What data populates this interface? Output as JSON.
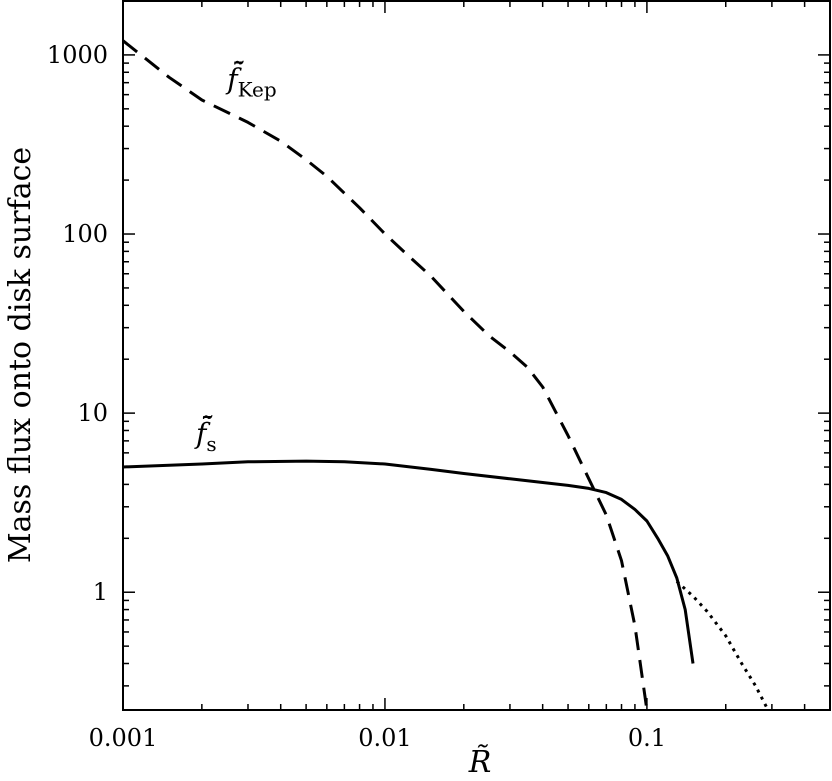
{
  "chart_data": {
    "type": "line",
    "xlabel": "R̃",
    "ylabel": "Mass flux onto disk surface",
    "xscale": "log",
    "yscale": "log",
    "xlim": [
      0.001,
      0.5
    ],
    "ylim": [
      0.22,
      2000
    ],
    "x_ticks": [
      {
        "value": 0.001,
        "label": "0.001"
      },
      {
        "value": 0.01,
        "label": "0.01"
      },
      {
        "value": 0.1,
        "label": "0.1"
      }
    ],
    "y_ticks": [
      {
        "value": 1,
        "label": "1"
      },
      {
        "value": 10,
        "label": "10"
      },
      {
        "value": 100,
        "label": "100"
      },
      {
        "value": 1000,
        "label": "1000"
      }
    ],
    "grid": false,
    "series": [
      {
        "name": "f̄̃Kep",
        "label_main": "f̄̃",
        "label_sub": "Kep",
        "style": "dashed",
        "color": "#000000",
        "points": [
          [
            0.001,
            1200
          ],
          [
            0.0015,
            750
          ],
          [
            0.002,
            560
          ],
          [
            0.003,
            420
          ],
          [
            0.004,
            330
          ],
          [
            0.005,
            260
          ],
          [
            0.006,
            210
          ],
          [
            0.008,
            140
          ],
          [
            0.01,
            100
          ],
          [
            0.012,
            78
          ],
          [
            0.015,
            58
          ],
          [
            0.02,
            37
          ],
          [
            0.025,
            27
          ],
          [
            0.03,
            22
          ],
          [
            0.035,
            18
          ],
          [
            0.04,
            14
          ],
          [
            0.05,
            7.5
          ],
          [
            0.06,
            4.3
          ],
          [
            0.07,
            2.7
          ],
          [
            0.08,
            1.5
          ],
          [
            0.09,
            0.65
          ],
          [
            0.1,
            0.22
          ]
        ]
      },
      {
        "name": "f̄̃s",
        "label_main": "f̄̃",
        "label_sub": "s",
        "style": "solid",
        "color": "#000000",
        "points": [
          [
            0.001,
            5.0
          ],
          [
            0.002,
            5.2
          ],
          [
            0.003,
            5.35
          ],
          [
            0.005,
            5.4
          ],
          [
            0.007,
            5.35
          ],
          [
            0.01,
            5.2
          ],
          [
            0.015,
            4.85
          ],
          [
            0.02,
            4.6
          ],
          [
            0.03,
            4.3
          ],
          [
            0.04,
            4.1
          ],
          [
            0.05,
            3.95
          ],
          [
            0.06,
            3.8
          ],
          [
            0.07,
            3.6
          ],
          [
            0.08,
            3.3
          ],
          [
            0.09,
            2.9
          ],
          [
            0.1,
            2.5
          ],
          [
            0.11,
            2.0
          ],
          [
            0.12,
            1.6
          ],
          [
            0.13,
            1.2
          ],
          [
            0.14,
            0.8
          ],
          [
            0.15,
            0.4
          ]
        ]
      },
      {
        "name": "",
        "style": "dotted",
        "color": "#000000",
        "points": [
          [
            0.13,
            1.15
          ],
          [
            0.15,
            0.95
          ],
          [
            0.17,
            0.78
          ],
          [
            0.2,
            0.57
          ],
          [
            0.23,
            0.4
          ],
          [
            0.26,
            0.3
          ],
          [
            0.29,
            0.22
          ]
        ]
      }
    ],
    "annotations": [
      {
        "series": 0,
        "x": 0.0025,
        "y": 650
      },
      {
        "series": 1,
        "x": 0.0019,
        "y": 6.8
      }
    ]
  }
}
